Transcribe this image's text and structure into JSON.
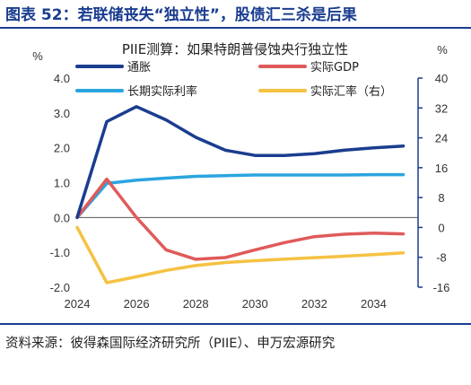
{
  "figure_title": "图表 52：若联储丧失“独立性”，股债汇三杀是后果",
  "source_note": "资料来源：彼得森国际经济研究所（PIIE）、申万宏源研究",
  "colors": {
    "title": "#1a3d8f",
    "inflation": "#1a3d8f",
    "gdp": "#e05a5a",
    "real_rate": "#2aa5e0",
    "fx": "#f5c242",
    "right_axis": "#1a3d8f"
  },
  "chart_data": {
    "type": "line",
    "title": "PIIE测算：如果特朗普侵蚀央行独立性",
    "left_unit": "%",
    "right_unit": "%",
    "ylim_left": [
      -2.0,
      4.0
    ],
    "yticks_left": [
      "4.0",
      "3.0",
      "2.0",
      "1.0",
      "0.0",
      "-1.0",
      "-2.0"
    ],
    "ylim_right": [
      -16,
      40
    ],
    "yticks_right": [
      "40",
      "32",
      "24",
      "16",
      "8",
      "0",
      "-8",
      "-16"
    ],
    "xlim": [
      2024,
      2035.5
    ],
    "xticks": [
      "2024",
      "2026",
      "2028",
      "2030",
      "2032",
      "2034"
    ],
    "grid": false,
    "legend_position": "top",
    "x": [
      2024,
      2025,
      2026,
      2027,
      2028,
      2029,
      2030,
      2031,
      2032,
      2033,
      2034,
      2035
    ],
    "series": [
      {
        "name": "通胀",
        "axis": "left",
        "color_key": "inflation",
        "values": [
          0.0,
          2.75,
          3.18,
          2.8,
          2.3,
          1.93,
          1.78,
          1.78,
          1.83,
          1.93,
          2.0,
          2.05
        ]
      },
      {
        "name": "实际GDP",
        "axis": "left",
        "color_key": "gdp",
        "values": [
          0.0,
          1.1,
          0.0,
          -0.93,
          -1.2,
          -1.15,
          -0.93,
          -0.72,
          -0.55,
          -0.48,
          -0.45,
          -0.47
        ]
      },
      {
        "name": "长期实际利率",
        "axis": "left",
        "color_key": "real_rate",
        "values": [
          0.0,
          0.98,
          1.07,
          1.13,
          1.18,
          1.2,
          1.22,
          1.22,
          1.22,
          1.22,
          1.23,
          1.23
        ]
      },
      {
        "name": "实际汇率（右）",
        "axis": "right",
        "color_key": "fx",
        "values": [
          0.0,
          -14.8,
          -13.2,
          -11.5,
          -10.2,
          -9.4,
          -8.9,
          -8.5,
          -8.1,
          -7.7,
          -7.3,
          -6.8
        ]
      }
    ]
  }
}
